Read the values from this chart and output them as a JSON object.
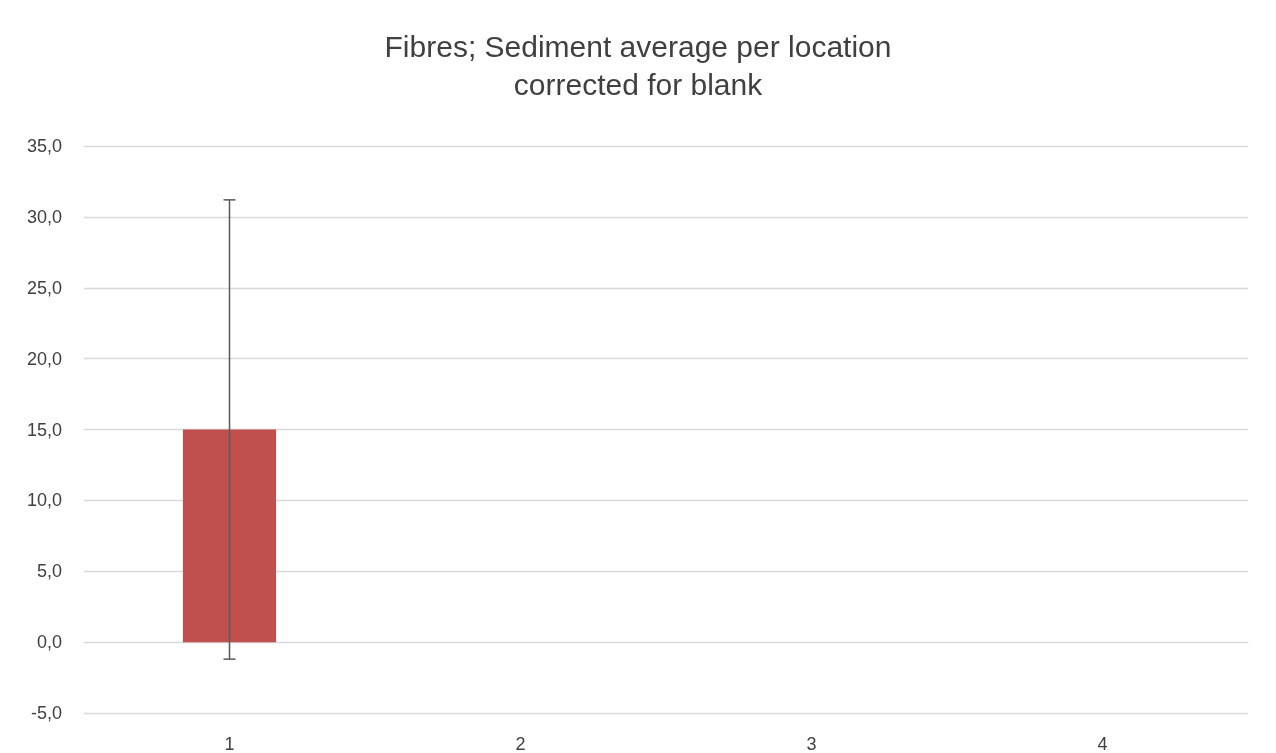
{
  "chart_data": {
    "type": "bar",
    "title": "Fibres; Sediment average per location\ncorrected for blank",
    "categories": [
      "1",
      "2",
      "3",
      "4"
    ],
    "values": [
      15.0,
      0,
      0,
      0
    ],
    "errors": [
      16.2,
      null,
      null,
      null
    ],
    "color": "#c0504d",
    "ylim": [
      -5,
      35
    ],
    "yticks": [
      {
        "value": -5,
        "label": "-5,0"
      },
      {
        "value": 0,
        "label": "0,0"
      },
      {
        "value": 5,
        "label": "5,0"
      },
      {
        "value": 10,
        "label": "10,0"
      },
      {
        "value": 15,
        "label": "15,0"
      },
      {
        "value": 20,
        "label": "20,0"
      },
      {
        "value": 25,
        "label": "25,0"
      },
      {
        "value": 30,
        "label": "30,0"
      },
      {
        "value": 35,
        "label": "35,0"
      }
    ],
    "grid": "y"
  }
}
